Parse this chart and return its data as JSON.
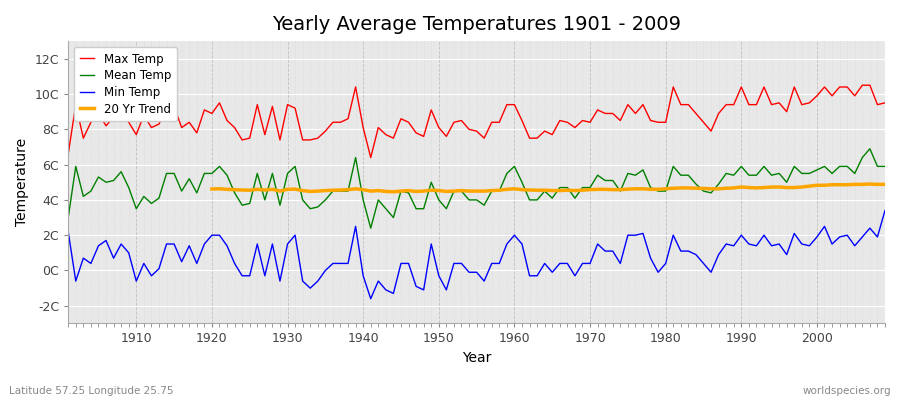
{
  "title": "Yearly Average Temperatures 1901 - 2009",
  "xlabel": "Year",
  "ylabel": "Temperature",
  "subtitle": "Latitude 57.25 Longitude 25.75",
  "watermark": "worldspecies.org",
  "years": [
    1901,
    1902,
    1903,
    1904,
    1905,
    1906,
    1907,
    1908,
    1909,
    1910,
    1911,
    1912,
    1913,
    1914,
    1915,
    1916,
    1917,
    1918,
    1919,
    1920,
    1921,
    1922,
    1923,
    1924,
    1925,
    1926,
    1927,
    1928,
    1929,
    1930,
    1931,
    1932,
    1933,
    1934,
    1935,
    1936,
    1937,
    1938,
    1939,
    1940,
    1941,
    1942,
    1943,
    1944,
    1945,
    1946,
    1947,
    1948,
    1949,
    1950,
    1951,
    1952,
    1953,
    1954,
    1955,
    1956,
    1957,
    1958,
    1959,
    1960,
    1961,
    1962,
    1963,
    1964,
    1965,
    1966,
    1967,
    1968,
    1969,
    1970,
    1971,
    1972,
    1973,
    1974,
    1975,
    1976,
    1977,
    1978,
    1979,
    1980,
    1981,
    1982,
    1983,
    1984,
    1985,
    1986,
    1987,
    1988,
    1989,
    1990,
    1991,
    1992,
    1993,
    1994,
    1995,
    1996,
    1997,
    1998,
    1999,
    2000,
    2001,
    2002,
    2003,
    2004,
    2005,
    2006,
    2007,
    2008,
    2009
  ],
  "max_temp": [
    6.6,
    9.4,
    7.5,
    8.4,
    8.9,
    8.2,
    8.7,
    9.3,
    8.4,
    7.7,
    8.8,
    8.1,
    8.3,
    9.2,
    9.3,
    8.1,
    8.4,
    7.8,
    9.1,
    8.9,
    9.5,
    8.5,
    8.1,
    7.4,
    7.5,
    9.4,
    7.7,
    9.3,
    7.4,
    9.4,
    9.2,
    7.4,
    7.4,
    7.5,
    7.9,
    8.4,
    8.4,
    8.6,
    10.4,
    8.1,
    6.4,
    8.1,
    7.7,
    7.5,
    8.6,
    8.4,
    7.8,
    7.6,
    9.1,
    8.1,
    7.6,
    8.4,
    8.5,
    8.0,
    7.9,
    7.5,
    8.4,
    8.4,
    9.4,
    9.4,
    8.5,
    7.5,
    7.5,
    7.9,
    7.7,
    8.5,
    8.4,
    8.1,
    8.5,
    8.4,
    9.1,
    8.9,
    8.9,
    8.5,
    9.4,
    8.9,
    9.4,
    8.5,
    8.4,
    8.4,
    10.4,
    9.4,
    9.4,
    8.9,
    8.4,
    7.9,
    8.9,
    9.4,
    9.4,
    10.4,
    9.4,
    9.4,
    10.4,
    9.4,
    9.5,
    9.0,
    10.4,
    9.4,
    9.5,
    9.9,
    10.4,
    9.9,
    10.4,
    10.4,
    9.9,
    10.5,
    10.5,
    9.4,
    9.5
  ],
  "mean_temp": [
    3.0,
    5.9,
    4.2,
    4.5,
    5.3,
    5.0,
    5.1,
    5.6,
    4.7,
    3.5,
    4.2,
    3.8,
    4.1,
    5.5,
    5.5,
    4.5,
    5.2,
    4.4,
    5.5,
    5.5,
    5.9,
    5.4,
    4.4,
    3.7,
    3.8,
    5.5,
    4.0,
    5.5,
    3.7,
    5.5,
    5.9,
    4.0,
    3.5,
    3.6,
    4.0,
    4.5,
    4.5,
    4.5,
    6.4,
    4.0,
    2.4,
    4.0,
    3.5,
    3.0,
    4.5,
    4.4,
    3.5,
    3.5,
    5.0,
    4.0,
    3.5,
    4.5,
    4.5,
    4.0,
    4.0,
    3.7,
    4.5,
    4.5,
    5.5,
    5.9,
    5.0,
    4.0,
    4.0,
    4.5,
    4.1,
    4.7,
    4.7,
    4.1,
    4.7,
    4.7,
    5.4,
    5.1,
    5.1,
    4.5,
    5.5,
    5.4,
    5.7,
    4.7,
    4.5,
    4.5,
    5.9,
    5.4,
    5.4,
    4.9,
    4.5,
    4.4,
    4.9,
    5.5,
    5.4,
    5.9,
    5.4,
    5.4,
    5.9,
    5.4,
    5.5,
    5.0,
    5.9,
    5.5,
    5.5,
    5.7,
    5.9,
    5.5,
    5.9,
    5.9,
    5.5,
    6.4,
    6.9,
    5.9,
    5.9
  ],
  "min_temp": [
    2.2,
    -0.6,
    0.7,
    0.4,
    1.4,
    1.7,
    0.7,
    1.5,
    1.0,
    -0.6,
    0.4,
    -0.3,
    0.1,
    1.5,
    1.5,
    0.5,
    1.4,
    0.4,
    1.5,
    2.0,
    2.0,
    1.4,
    0.4,
    -0.3,
    -0.3,
    1.5,
    -0.3,
    1.5,
    -0.6,
    1.5,
    2.0,
    -0.6,
    -1.0,
    -0.6,
    0.0,
    0.4,
    0.4,
    0.4,
    2.5,
    -0.3,
    -1.6,
    -0.6,
    -1.1,
    -1.3,
    0.4,
    0.4,
    -0.9,
    -1.1,
    1.5,
    -0.3,
    -1.1,
    0.4,
    0.4,
    -0.1,
    -0.1,
    -0.6,
    0.4,
    0.4,
    1.5,
    2.0,
    1.5,
    -0.3,
    -0.3,
    0.4,
    -0.1,
    0.4,
    0.4,
    -0.3,
    0.4,
    0.4,
    1.5,
    1.1,
    1.1,
    0.4,
    2.0,
    2.0,
    2.1,
    0.7,
    -0.1,
    0.4,
    2.0,
    1.1,
    1.1,
    0.9,
    0.4,
    -0.1,
    0.9,
    1.5,
    1.4,
    2.0,
    1.5,
    1.4,
    2.0,
    1.4,
    1.5,
    0.9,
    2.1,
    1.5,
    1.4,
    1.9,
    2.5,
    1.5,
    1.9,
    2.0,
    1.4,
    1.9,
    2.4,
    1.9,
    3.4
  ],
  "trend_years": [
    1920,
    1921,
    1922,
    1923,
    1924,
    1925,
    1926,
    1927,
    1928,
    1929,
    1930,
    1931,
    1932,
    1933,
    1934,
    1935,
    1936,
    1937,
    1938,
    1939,
    1940,
    1941,
    1942,
    1943,
    1944,
    1945,
    1946,
    1947,
    1948,
    1949,
    1950,
    1951,
    1952,
    1953,
    1954,
    1955,
    1956,
    1957,
    1958,
    1959,
    1960,
    1961,
    1962,
    1963,
    1964,
    1965,
    1966,
    1967,
    1968,
    1969,
    1970,
    1971,
    1972,
    1973,
    1974,
    1975,
    1976,
    1977,
    1978,
    1979,
    1980,
    1981,
    1982,
    1983,
    1984,
    1985,
    1986,
    1987,
    1988,
    1989,
    1990,
    1991,
    1992,
    1993,
    1994,
    1995,
    1996,
    1997,
    1998,
    1999,
    2000,
    2001,
    2002,
    2003,
    2004,
    2005,
    2006,
    2007,
    2008,
    2009
  ],
  "trend_vals": [
    4.62,
    4.63,
    4.6,
    4.58,
    4.56,
    4.55,
    4.6,
    4.56,
    4.6,
    4.5,
    4.6,
    4.61,
    4.53,
    4.48,
    4.5,
    4.53,
    4.55,
    4.56,
    4.58,
    4.63,
    4.58,
    4.5,
    4.53,
    4.48,
    4.46,
    4.5,
    4.53,
    4.48,
    4.5,
    4.55,
    4.53,
    4.48,
    4.5,
    4.53,
    4.5,
    4.5,
    4.5,
    4.53,
    4.55,
    4.6,
    4.63,
    4.58,
    4.56,
    4.55,
    4.55,
    4.53,
    4.53,
    4.55,
    4.53,
    4.55,
    4.58,
    4.6,
    4.6,
    4.58,
    4.58,
    4.61,
    4.63,
    4.63,
    4.6,
    4.6,
    4.63,
    4.66,
    4.68,
    4.68,
    4.66,
    4.65,
    4.63,
    4.63,
    4.66,
    4.68,
    4.73,
    4.7,
    4.68,
    4.7,
    4.73,
    4.73,
    4.7,
    4.7,
    4.73,
    4.78,
    4.83,
    4.83,
    4.86,
    4.86,
    4.86,
    4.88,
    4.88,
    4.9,
    4.88,
    4.88
  ],
  "colors": {
    "max": "#ff0000",
    "mean": "#008000",
    "min": "#0000ff",
    "trend": "#ffa500",
    "fig_bg": "#ffffff",
    "plot_bg": "#e8e8e8",
    "grid_major": "#ffffff",
    "grid_minor": "#d8d8d8"
  },
  "ylim": [
    -3,
    13
  ],
  "yticks": [
    -2,
    0,
    2,
    4,
    6,
    8,
    10,
    12
  ],
  "ytick_labels": [
    "-2C",
    "0C",
    "2C",
    "4C",
    "6C",
    "8C",
    "10C",
    "12C"
  ],
  "xtick_positions": [
    1910,
    1920,
    1930,
    1940,
    1950,
    1960,
    1970,
    1980,
    1990,
    2000
  ],
  "xlim": [
    1901,
    2009
  ]
}
